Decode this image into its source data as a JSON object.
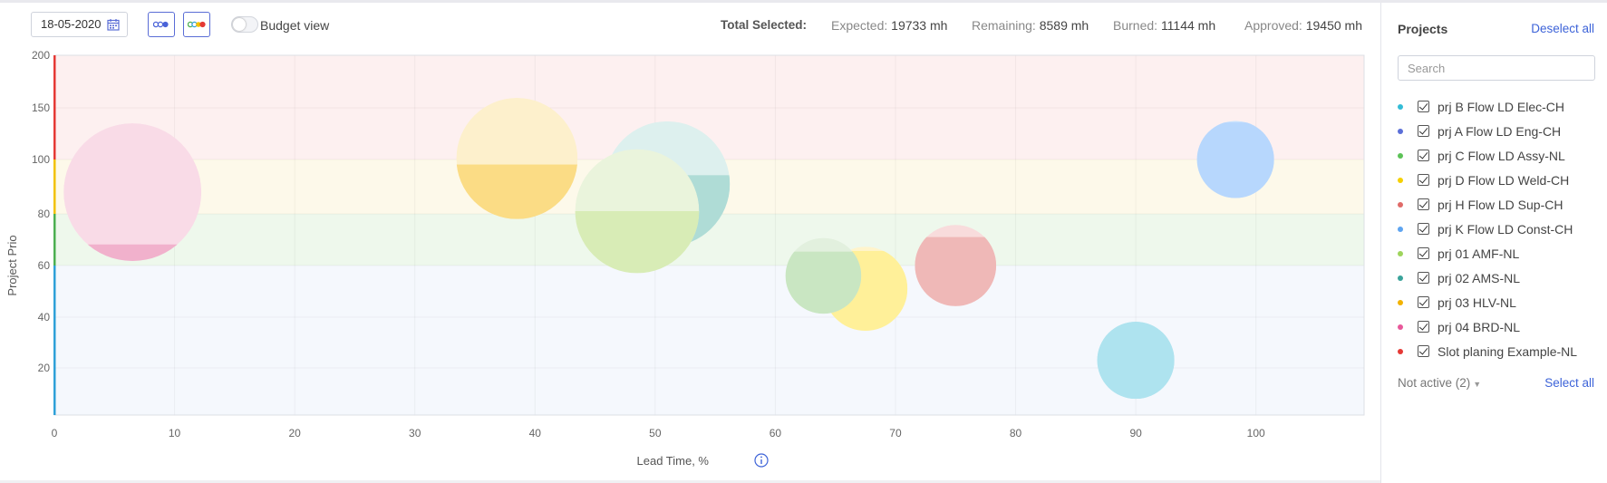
{
  "toolbar": {
    "date_value": "18-05-2020",
    "budget_view_label": "Budget view",
    "budget_view_on": false
  },
  "totals": {
    "total_selected_label": "Total Selected:",
    "expected_label": "Expected:",
    "expected_value": "19733 mh",
    "remaining_label": "Remaining:",
    "remaining_value": "8589 mh",
    "burned_label": "Burned:",
    "burned_value": "11144 mh",
    "approved_label": "Approved:",
    "approved_value": "19450 mh"
  },
  "sidebar": {
    "title": "Projects",
    "deselect_all": "Deselect all",
    "search_placeholder": "Search",
    "projects": [
      {
        "name": "prj B Flow LD Elec-CH",
        "color": "#33bcd6",
        "checked": true
      },
      {
        "name": "prj A Flow LD Eng-CH",
        "color": "#5b6fd8",
        "checked": true
      },
      {
        "name": "prj C Flow LD Assy-NL",
        "color": "#5cc257",
        "checked": true
      },
      {
        "name": "prj D Flow LD Weld-CH",
        "color": "#f5d000",
        "checked": true
      },
      {
        "name": "prj H Flow LD Sup-CH",
        "color": "#e06b68",
        "checked": true
      },
      {
        "name": "prj K Flow LD Const-CH",
        "color": "#5ea4f0",
        "checked": true
      },
      {
        "name": "prj 01 AMF-NL",
        "color": "#9ed45c",
        "checked": true
      },
      {
        "name": "prj 02 AMS-NL",
        "color": "#3aa39a",
        "checked": true
      },
      {
        "name": "prj 03 HLV-NL",
        "color": "#f2b200",
        "checked": true
      },
      {
        "name": "prj 04 BRD-NL",
        "color": "#e8589a",
        "checked": true
      },
      {
        "name": "Slot planing Example-NL",
        "color": "#e53935",
        "checked": true
      }
    ],
    "not_active_label": "Not active (2)",
    "select_all": "Select all"
  },
  "chart_data": {
    "type": "scatter",
    "xlabel": "Lead Time, %",
    "ylabel": "Project Prio",
    "xlim": [
      0,
      109
    ],
    "ylim": [
      0,
      200
    ],
    "x_ticks": [
      0,
      10,
      20,
      30,
      40,
      50,
      60,
      70,
      80,
      90,
      100
    ],
    "y_ticks": [
      20,
      40,
      60,
      80,
      100,
      150,
      200
    ],
    "bands": [
      {
        "from": 0,
        "to": 60,
        "color": "#f5f8fd",
        "edge": "#2fa0d8"
      },
      {
        "from": 60,
        "to": 80,
        "color": "#eef8ec",
        "edge": "#4caf50"
      },
      {
        "from": 80,
        "to": 100,
        "color": "#fdf9ea",
        "edge": "#f2c200"
      },
      {
        "from": 100,
        "to": 200,
        "color": "#fdf0f0",
        "edge": "#e53935"
      }
    ],
    "points": [
      {
        "project": "prj 04 BRD-NL",
        "x": 6.5,
        "y": 88,
        "size": 100,
        "fill_level": 0.12,
        "light": "#f9dbe7",
        "dark": "#f1b1cc"
      },
      {
        "project": "prj 03 HLV-NL",
        "x": 38.5,
        "y": 101,
        "size": 88,
        "fill_level": 0.45,
        "light": "#fdf0cc",
        "dark": "#fbdc85"
      },
      {
        "project": "prj 02 AMS-NL",
        "x": 51,
        "y": 91,
        "size": 91,
        "fill_level": 0.57,
        "light": "#ddf0ee",
        "dark": "#afdcd6"
      },
      {
        "project": "prj 01 AMF-NL",
        "x": 48.5,
        "y": 81,
        "size": 90,
        "fill_level": 0.5,
        "light": "#eaf4dc",
        "dark": "#d8ecb6"
      },
      {
        "project": "prj D Flow LD Weld-CH",
        "x": 67.5,
        "y": 51,
        "size": 61,
        "fill_level": 0.95,
        "light": "#fff4cc",
        "dark": "#fff099"
      },
      {
        "project": "prj C Flow LD Assy-NL",
        "x": 64,
        "y": 56,
        "size": 55,
        "fill_level": 0.82,
        "light": "#e2f0de",
        "dark": "#c9e6c2"
      },
      {
        "project": "prj H Flow LD Sup-CH",
        "x": 75,
        "y": 60,
        "size": 59,
        "fill_level": 0.85,
        "light": "#f8dcdc",
        "dark": "#efb8b7"
      },
      {
        "project": "prj K Flow LD Const-CH",
        "x": 98.3,
        "y": 100,
        "size": 56,
        "fill_level": 0.98,
        "light": "#c9e3fe",
        "dark": "#b7d7fd"
      },
      {
        "project": "prj B Flow LD Elec-CH",
        "x": 90,
        "y": 23,
        "size": 56,
        "fill_level": 1.0,
        "light": "#aee3ef",
        "dark": "#aee3ef"
      }
    ]
  }
}
